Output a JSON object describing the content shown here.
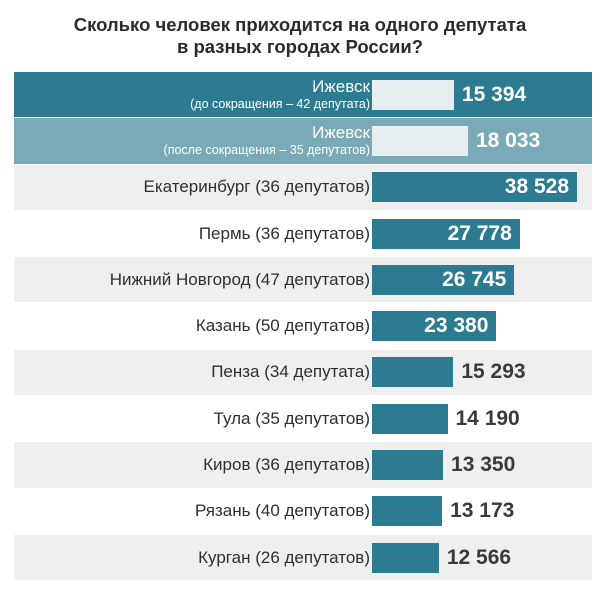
{
  "chart_data": {
    "type": "bar",
    "orientation": "horizontal",
    "title_lines": [
      "Сколько человек приходится на одного депутата",
      "в разных городах России?"
    ],
    "categories": [
      {
        "label": "Ижевск",
        "sublabel": "(до сокращения – 42 депутата)",
        "highlight": 1
      },
      {
        "label": "Ижевск",
        "sublabel": "(после сокращения – 35 депутатов)",
        "highlight": 2
      },
      {
        "label": "Екатеринбург (36 депутатов)"
      },
      {
        "label": "Пермь (36 депутатов)"
      },
      {
        "label": "Нижний Новгород (47 депутатов)"
      },
      {
        "label": "Казань (50 депутатов)"
      },
      {
        "label": "Пенза (34 депутата)"
      },
      {
        "label": "Тула (35 депутатов)"
      },
      {
        "label": "Киров (36 депутатов)"
      },
      {
        "label": "Рязань (40 депутатов)"
      },
      {
        "label": "Курган (26 депутатов)"
      }
    ],
    "values": [
      15394,
      18033,
      38528,
      27778,
      26745,
      23380,
      15293,
      14190,
      13350,
      13173,
      12566
    ],
    "value_labels": [
      "15 394",
      "18 033",
      "38 528",
      "27 778",
      "26 745",
      "23 380",
      "15 293",
      "14 190",
      "13 350",
      "13 173",
      "12 566"
    ],
    "xlim": [
      0,
      38528
    ],
    "colors": {
      "bar": "#2c7b90",
      "highlight_row_1": "#2c7b90",
      "highlight_row_2": "#7aa9b8",
      "highlight_bar": "#e6eef1",
      "stripe": "#efefef"
    }
  }
}
